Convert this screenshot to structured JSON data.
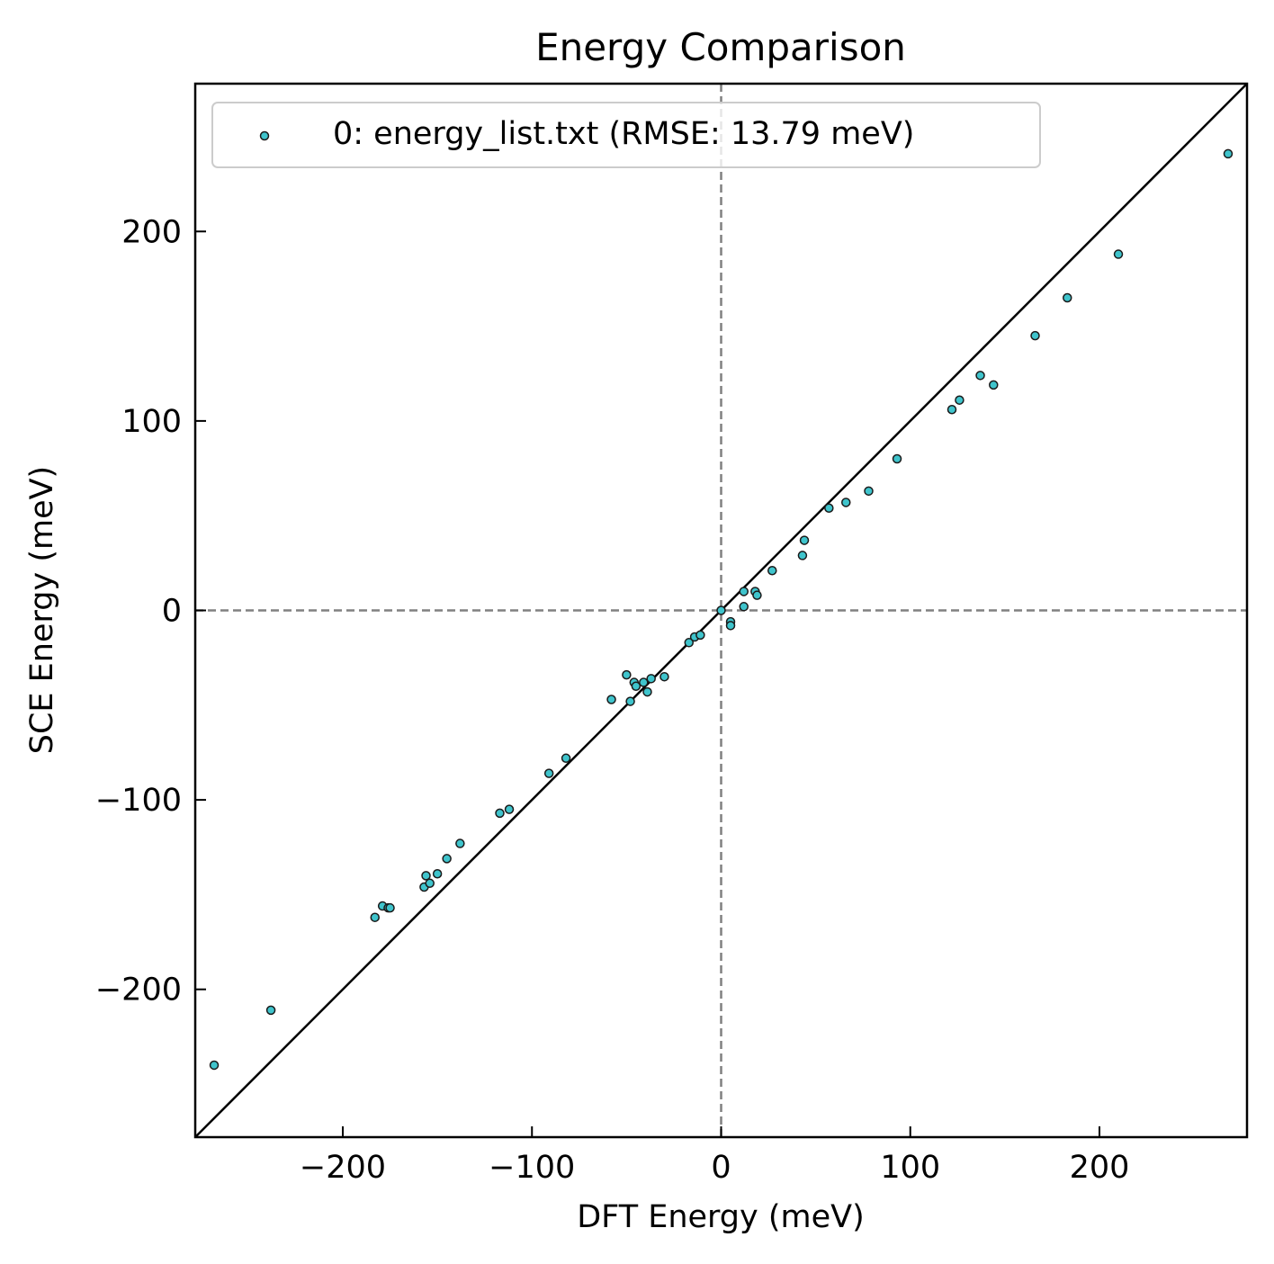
{
  "chart_data": {
    "type": "scatter",
    "title": "Energy Comparison",
    "xlabel": "DFT Energy (meV)",
    "ylabel": "SCE Energy (meV)",
    "xlim": [
      -278,
      278
    ],
    "ylim": [
      -278,
      278
    ],
    "xticks": [
      -200,
      -100,
      0,
      100,
      200
    ],
    "yticks": [
      -200,
      -100,
      0,
      100,
      200
    ],
    "xtick_labels": [
      "−200",
      "−100",
      "0",
      "100",
      "200"
    ],
    "ytick_labels": [
      "−200",
      "−100",
      "0",
      "100",
      "200"
    ],
    "grid": false,
    "legend_position": "top-left",
    "reference_lines": [
      "y = x",
      "x = 0",
      "y = 0"
    ],
    "colors": {
      "marker_fill": "#3fc4cc",
      "marker_edge": "#1a1a1a",
      "diagonal": "#000000",
      "zero_lines": "#808080"
    },
    "series": [
      {
        "name": "0: energy_list.txt (RMSE: 13.79 meV)",
        "points": [
          [
            -268,
            -240
          ],
          [
            -238,
            -211
          ],
          [
            -183,
            -162
          ],
          [
            -179,
            -156
          ],
          [
            -176,
            -157
          ],
          [
            -175,
            -157
          ],
          [
            -157,
            -146
          ],
          [
            -156,
            -140
          ],
          [
            -154,
            -144
          ],
          [
            -150,
            -139
          ],
          [
            -145,
            -131
          ],
          [
            -138,
            -123
          ],
          [
            -117,
            -107
          ],
          [
            -112,
            -105
          ],
          [
            -91,
            -86
          ],
          [
            -82,
            -78
          ],
          [
            -58,
            -47
          ],
          [
            -50,
            -34
          ],
          [
            -48,
            -48
          ],
          [
            -46,
            -38
          ],
          [
            -45,
            -40
          ],
          [
            -41,
            -38
          ],
          [
            -39,
            -43
          ],
          [
            -37,
            -36
          ],
          [
            -30,
            -35
          ],
          [
            -17,
            -17
          ],
          [
            -14,
            -14
          ],
          [
            -11,
            -13
          ],
          [
            0,
            0
          ],
          [
            5,
            -6
          ],
          [
            5,
            -8
          ],
          [
            12,
            10
          ],
          [
            12,
            2
          ],
          [
            18,
            10
          ],
          [
            19,
            8
          ],
          [
            27,
            21
          ],
          [
            43,
            29
          ],
          [
            44,
            37
          ],
          [
            57,
            54
          ],
          [
            66,
            57
          ],
          [
            78,
            63
          ],
          [
            93,
            80
          ],
          [
            122,
            106
          ],
          [
            126,
            111
          ],
          [
            137,
            124
          ],
          [
            144,
            119
          ],
          [
            166,
            145
          ],
          [
            183,
            165
          ],
          [
            210,
            188
          ],
          [
            268,
            241
          ]
        ]
      }
    ]
  }
}
